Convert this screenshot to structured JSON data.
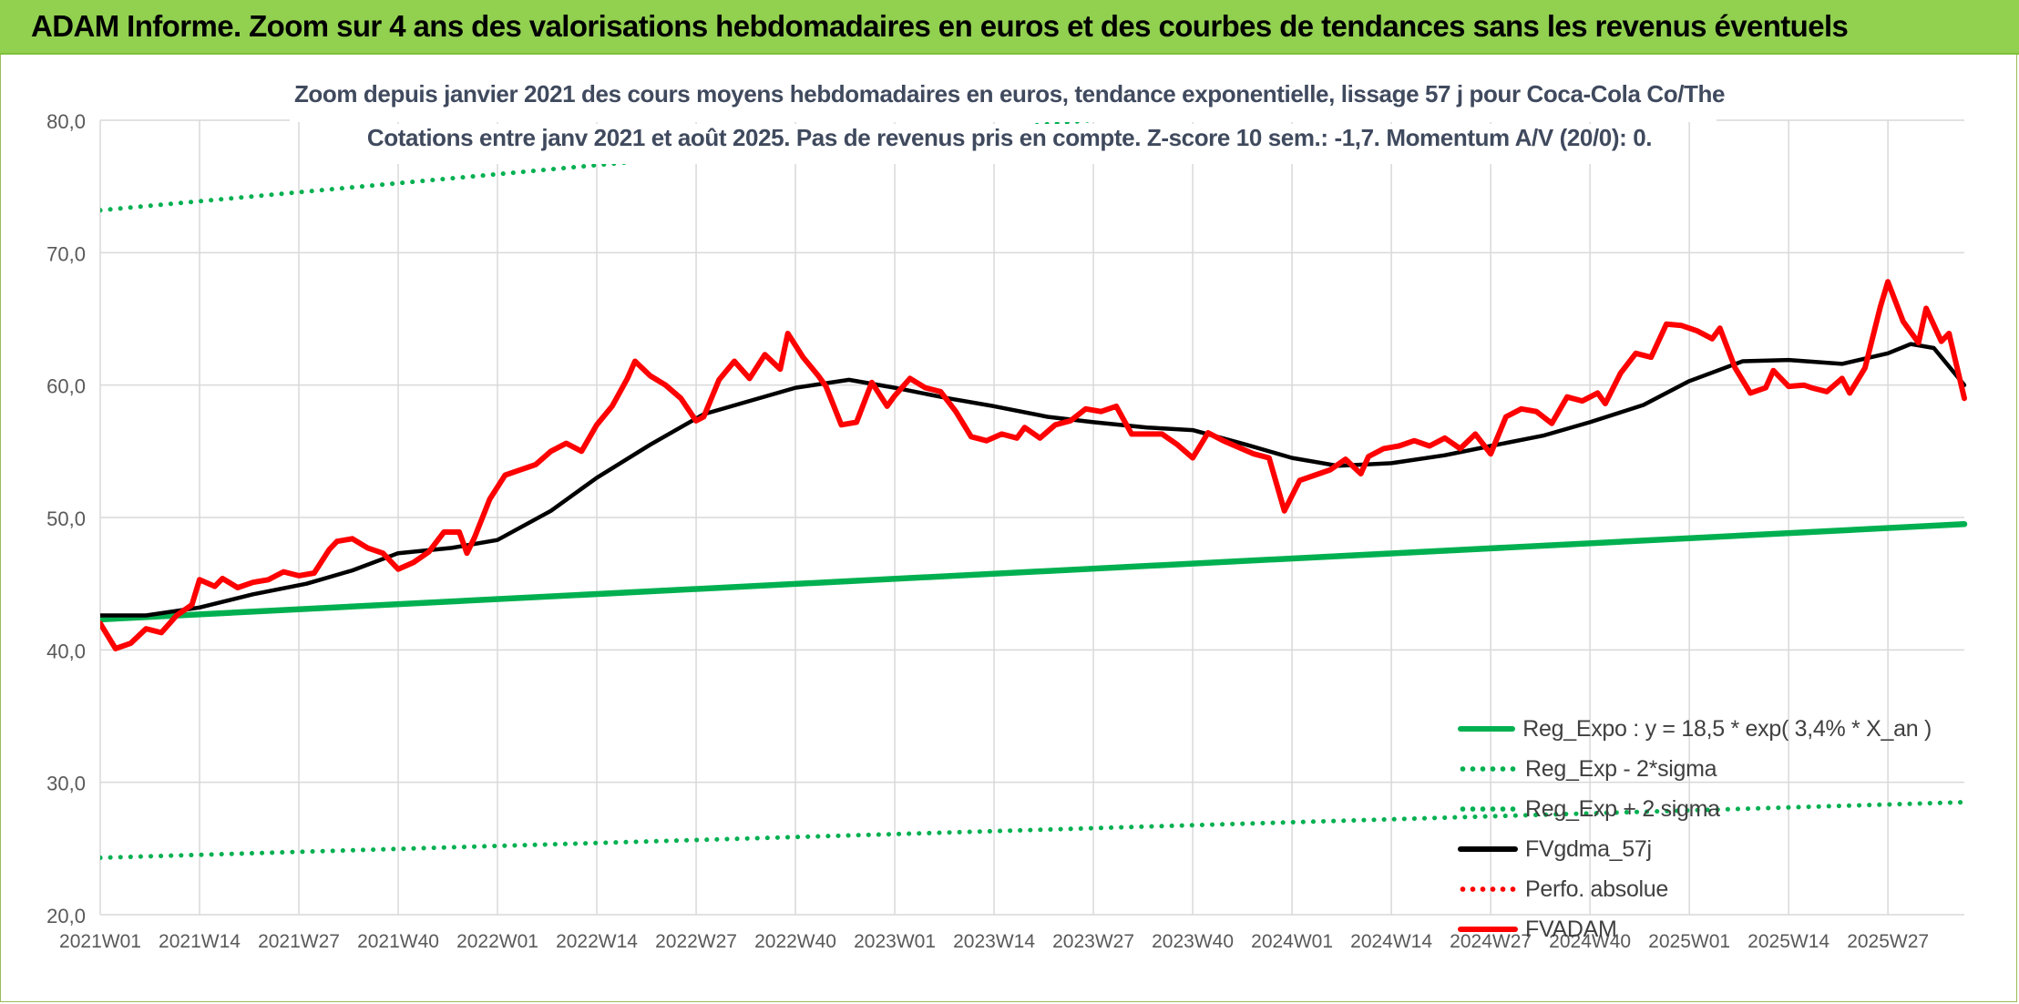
{
  "header": {
    "title": "ADAM Informe. Zoom sur 4 ans des valorisations hebdomadaires en euros et des courbes de tendances sans les revenus éventuels"
  },
  "colors": {
    "header_bg": "#92d050",
    "reg_expo": "#00b050",
    "fvgdma": "#000000",
    "fvadam": "#ff0000",
    "perfo": "#ff0000",
    "grid": "#d9d9d9"
  },
  "chart_data": {
    "type": "line",
    "title_line1": "Zoom depuis janvier 2021 des cours moyens hebdomadaires en euros, tendance exponentielle, lissage 57 j pour Coca-Cola Co/The",
    "title_line2": "Cotations entre janv 2021 et août 2025. Pas de revenus pris en compte. Z-score 10 sem.: -1,7. Momentum A/V (20/0): 0.",
    "ylim": [
      20,
      80
    ],
    "y_ticks": [
      "80,0",
      "70,0",
      "60,0",
      "50,0",
      "40,0",
      "30,0",
      "20,0"
    ],
    "y_tick_values": [
      80,
      70,
      60,
      50,
      40,
      30,
      20
    ],
    "x_ticks": [
      "2021W01",
      "2021W14",
      "2021W27",
      "2021W40",
      "2022W01",
      "2022W14",
      "2022W27",
      "2022W40",
      "2023W01",
      "2023W14",
      "2023W27",
      "2023W40",
      "2024W01",
      "2024W14",
      "2024W27",
      "2024W40",
      "2025W01",
      "2025W14",
      "2025W27"
    ],
    "grid": true,
    "legend_position": "bottom-right",
    "series": [
      {
        "name": "Reg_Expo : y = 18,5 * exp( 3,4% *  X_an )",
        "style": "solid-thick",
        "color": "#00b050",
        "points": [
          [
            0,
            42.3
          ],
          [
            244,
            49.5
          ]
        ]
      },
      {
        "name": "Reg_Exp - 2*sigma",
        "style": "dotted",
        "color": "#00b050",
        "points": [
          [
            0,
            24.3
          ],
          [
            244,
            28.5
          ]
        ]
      },
      {
        "name": "Reg_Exp + 2 sigma",
        "style": "dotted",
        "color": "#00b050",
        "points": [
          [
            0,
            73.2
          ],
          [
            244,
            86.0
          ]
        ]
      },
      {
        "name": "FVgdma_57j",
        "style": "solid",
        "color": "#000000",
        "points": [
          [
            0,
            42.6
          ],
          [
            6,
            42.6
          ],
          [
            13,
            43.2
          ],
          [
            20,
            44.2
          ],
          [
            27,
            45.0
          ],
          [
            33,
            46.0
          ],
          [
            39,
            47.3
          ],
          [
            46,
            47.7
          ],
          [
            52,
            48.3
          ],
          [
            59,
            50.5
          ],
          [
            65,
            53.0
          ],
          [
            72,
            55.5
          ],
          [
            79,
            57.8
          ],
          [
            85,
            58.8
          ],
          [
            91,
            59.8
          ],
          [
            98,
            60.4
          ],
          [
            104,
            59.8
          ],
          [
            111,
            59.0
          ],
          [
            117,
            58.4
          ],
          [
            124,
            57.6
          ],
          [
            130,
            57.2
          ],
          [
            137,
            56.8
          ],
          [
            143,
            56.6
          ],
          [
            150,
            55.5
          ],
          [
            156,
            54.5
          ],
          [
            162,
            53.9
          ],
          [
            169,
            54.1
          ],
          [
            176,
            54.7
          ],
          [
            182,
            55.4
          ],
          [
            189,
            56.2
          ],
          [
            195,
            57.2
          ],
          [
            202,
            58.5
          ],
          [
            208,
            60.3
          ],
          [
            215,
            61.8
          ],
          [
            221,
            61.9
          ],
          [
            228,
            61.6
          ],
          [
            234,
            62.4
          ],
          [
            237,
            63.1
          ],
          [
            240,
            62.8
          ],
          [
            244,
            60.0
          ]
        ]
      },
      {
        "name": "Perfo. absolue",
        "style": "dotted",
        "color": "#ff0000",
        "points": []
      },
      {
        "name": "FVADAM",
        "style": "solid-thick",
        "color": "#ff0000",
        "points": [
          [
            0,
            42.0
          ],
          [
            2,
            40.1
          ],
          [
            4,
            40.5
          ],
          [
            6,
            41.6
          ],
          [
            8,
            41.3
          ],
          [
            10,
            42.6
          ],
          [
            12,
            43.4
          ],
          [
            13,
            45.3
          ],
          [
            15,
            44.8
          ],
          [
            16,
            45.4
          ],
          [
            18,
            44.7
          ],
          [
            20,
            45.1
          ],
          [
            22,
            45.3
          ],
          [
            24,
            45.9
          ],
          [
            26,
            45.6
          ],
          [
            28,
            45.8
          ],
          [
            30,
            47.6
          ],
          [
            31,
            48.2
          ],
          [
            33,
            48.4
          ],
          [
            35,
            47.7
          ],
          [
            37,
            47.3
          ],
          [
            39,
            46.1
          ],
          [
            41,
            46.6
          ],
          [
            43,
            47.4
          ],
          [
            45,
            48.9
          ],
          [
            47,
            48.9
          ],
          [
            48,
            47.3
          ],
          [
            49,
            48.5
          ],
          [
            51,
            51.4
          ],
          [
            53,
            53.2
          ],
          [
            55,
            53.6
          ],
          [
            57,
            54.0
          ],
          [
            59,
            55.0
          ],
          [
            61,
            55.6
          ],
          [
            63,
            55.0
          ],
          [
            65,
            57.0
          ],
          [
            67,
            58.4
          ],
          [
            69,
            60.5
          ],
          [
            70,
            61.8
          ],
          [
            72,
            60.7
          ],
          [
            74,
            60.0
          ],
          [
            76,
            59.0
          ],
          [
            78,
            57.3
          ],
          [
            79,
            57.6
          ],
          [
            81,
            60.4
          ],
          [
            83,
            61.8
          ],
          [
            85,
            60.5
          ],
          [
            87,
            62.3
          ],
          [
            89,
            61.2
          ],
          [
            90,
            63.9
          ],
          [
            92,
            62.1
          ],
          [
            94,
            60.7
          ],
          [
            95,
            59.9
          ],
          [
            97,
            57.0
          ],
          [
            99,
            57.2
          ],
          [
            101,
            60.2
          ],
          [
            103,
            58.4
          ],
          [
            104,
            59.2
          ],
          [
            106,
            60.5
          ],
          [
            108,
            59.8
          ],
          [
            110,
            59.5
          ],
          [
            112,
            58.0
          ],
          [
            114,
            56.1
          ],
          [
            116,
            55.8
          ],
          [
            118,
            56.3
          ],
          [
            120,
            56.0
          ],
          [
            121,
            56.8
          ],
          [
            123,
            56.0
          ],
          [
            125,
            57.0
          ],
          [
            127,
            57.3
          ],
          [
            129,
            58.2
          ],
          [
            131,
            58.0
          ],
          [
            133,
            58.4
          ],
          [
            135,
            56.3
          ],
          [
            137,
            56.3
          ],
          [
            139,
            56.3
          ],
          [
            141,
            55.5
          ],
          [
            143,
            54.5
          ],
          [
            145,
            56.4
          ],
          [
            147,
            55.8
          ],
          [
            149,
            55.3
          ],
          [
            151,
            54.8
          ],
          [
            153,
            54.5
          ],
          [
            155,
            50.5
          ],
          [
            157,
            52.8
          ],
          [
            159,
            53.2
          ],
          [
            161,
            53.6
          ],
          [
            163,
            54.4
          ],
          [
            165,
            53.3
          ],
          [
            166,
            54.6
          ],
          [
            168,
            55.2
          ],
          [
            170,
            55.4
          ],
          [
            172,
            55.8
          ],
          [
            174,
            55.4
          ],
          [
            176,
            56.0
          ],
          [
            178,
            55.2
          ],
          [
            180,
            56.3
          ],
          [
            182,
            54.8
          ],
          [
            184,
            57.6
          ],
          [
            186,
            58.2
          ],
          [
            188,
            58.0
          ],
          [
            190,
            57.1
          ],
          [
            192,
            59.1
          ],
          [
            194,
            58.8
          ],
          [
            196,
            59.4
          ],
          [
            197,
            58.6
          ],
          [
            199,
            60.9
          ],
          [
            201,
            62.4
          ],
          [
            203,
            62.1
          ],
          [
            205,
            64.6
          ],
          [
            207,
            64.5
          ],
          [
            209,
            64.1
          ],
          [
            211,
            63.5
          ],
          [
            212,
            64.3
          ],
          [
            214,
            61.3
          ],
          [
            216,
            59.4
          ],
          [
            218,
            59.8
          ],
          [
            219,
            61.1
          ],
          [
            221,
            59.9
          ],
          [
            223,
            60.0
          ],
          [
            224,
            59.8
          ],
          [
            226,
            59.5
          ],
          [
            228,
            60.5
          ],
          [
            229,
            59.4
          ],
          [
            231,
            61.3
          ],
          [
            233,
            65.9
          ],
          [
            234,
            67.8
          ],
          [
            236,
            64.8
          ],
          [
            238,
            63.2
          ],
          [
            239,
            65.8
          ],
          [
            241,
            63.3
          ],
          [
            242,
            63.9
          ],
          [
            244,
            59.0
          ]
        ]
      }
    ]
  },
  "legend": {
    "items": [
      {
        "label": "Reg_Expo : y = 18,5 * exp( 3,4% *  X_an )",
        "color": "#00b050",
        "style": "solid"
      },
      {
        "label": "Reg_Exp - 2*sigma",
        "color": "#00b050",
        "style": "dotted"
      },
      {
        "label": "Reg_Exp + 2 sigma",
        "color": "#00b050",
        "style": "dotted"
      },
      {
        "label": "FVgdma_57j",
        "color": "#000000",
        "style": "solid"
      },
      {
        "label": "Perfo. absolue",
        "color": "#ff0000",
        "style": "dotted"
      },
      {
        "label": "FVADAM",
        "color": "#ff0000",
        "style": "solid"
      }
    ]
  }
}
